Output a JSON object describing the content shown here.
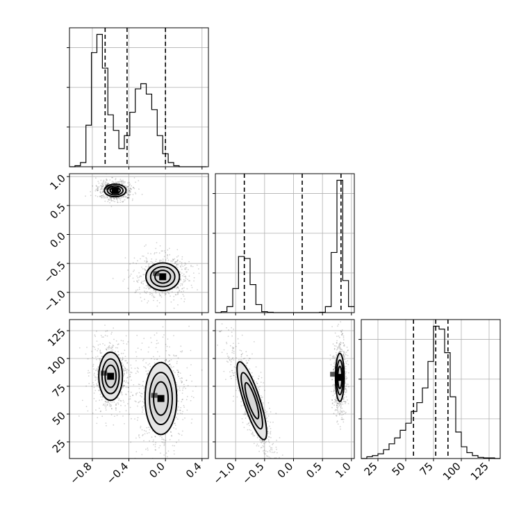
{
  "chart_data": {
    "type": "corner",
    "title": "",
    "grid": true,
    "parameters": [
      {
        "ticks": [
          -0.8,
          -0.4,
          0.0,
          0.4
        ],
        "tick_labels": [
          "−0.8",
          "−0.4",
          "0.0",
          "0.4"
        ],
        "range": [
          -1.05,
          0.47
        ],
        "quantiles": [
          -0.66,
          -0.42,
          0.0
        ],
        "hist_bins": [
          -1.05,
          -0.99,
          -0.93,
          -0.87,
          -0.81,
          -0.75,
          -0.69,
          -0.63,
          -0.57,
          -0.51,
          -0.45,
          -0.39,
          -0.33,
          -0.27,
          -0.21,
          -0.15,
          -0.09,
          -0.03,
          0.03,
          0.09,
          0.15,
          0.21,
          0.27,
          0.33,
          0.39,
          0.45
        ],
        "hist_counts": [
          0,
          2,
          8,
          80,
          220,
          255,
          190,
          100,
          70,
          35,
          60,
          105,
          150,
          160,
          140,
          110,
          60,
          25,
          8,
          2,
          0,
          0,
          0,
          0,
          0
        ]
      },
      {
        "ticks": [
          -1.0,
          -0.5,
          0.0,
          0.5,
          1.0
        ],
        "tick_labels": [
          "−1.0",
          "−0.5",
          "0.0",
          "0.5",
          "1.0"
        ],
        "y_tick_labels": [
          "−1.0",
          "−0.5",
          "0.0",
          "0.5",
          "1.0"
        ],
        "range": [
          -1.35,
          1.05
        ],
        "quantiles": [
          -0.85,
          0.15,
          0.82
        ],
        "hist_bins": [
          -1.35,
          -1.25,
          -1.15,
          -1.05,
          -0.95,
          -0.85,
          -0.75,
          -0.65,
          -0.55,
          -0.45,
          -0.35,
          -0.25,
          -0.15,
          -0.05,
          0.05,
          0.15,
          0.25,
          0.35,
          0.45,
          0.55,
          0.65,
          0.75,
          0.85,
          0.95,
          1.05
        ],
        "hist_counts": [
          0,
          5,
          30,
          120,
          280,
          270,
          140,
          40,
          5,
          2,
          0,
          0,
          0,
          0,
          0,
          0,
          0,
          0,
          2,
          30,
          300,
          660,
          160,
          30
        ]
      },
      {
        "ticks": [
          25,
          50,
          75,
          100,
          125
        ],
        "tick_labels": [
          "25",
          "50",
          "75",
          "100",
          "125"
        ],
        "y_tick_labels": [
          "25",
          "50",
          "75",
          "100",
          "125"
        ],
        "range": [
          10,
          135
        ],
        "quantiles": [
          57,
          77,
          88
        ],
        "hist_bins": [
          10,
          15,
          20,
          25,
          30,
          35,
          40,
          45,
          50,
          55,
          60,
          65,
          70,
          75,
          80,
          85,
          90,
          95,
          100,
          105,
          110,
          115,
          120,
          125,
          130,
          135
        ],
        "hist_counts": [
          0,
          3,
          5,
          8,
          15,
          25,
          35,
          48,
          60,
          80,
          95,
          120,
          165,
          225,
          220,
          180,
          105,
          45,
          20,
          10,
          5,
          2,
          1,
          1,
          0
        ]
      }
    ],
    "density_modes": [
      {
        "x": 0,
        "y": 1,
        "center": [
          -0.55,
          0.76
        ],
        "axes": [
          0.11,
          0.1
        ]
      },
      {
        "x": 0,
        "y": 1,
        "center": [
          -0.03,
          -0.73
        ],
        "axes": [
          0.17,
          0.22
        ]
      },
      {
        "x": 0,
        "y": 2,
        "center": [
          -0.6,
          84
        ],
        "axes": [
          0.12,
          20
        ]
      },
      {
        "x": 0,
        "y": 2,
        "center": [
          -0.05,
          64
        ],
        "axes": [
          0.16,
          30
        ]
      },
      {
        "x": 1,
        "y": 2,
        "center": [
          -0.72,
          62
        ],
        "axes": [
          0.13,
          34
        ]
      },
      {
        "x": 1,
        "y": 2,
        "center": [
          0.8,
          83
        ],
        "axes": [
          0.07,
          20
        ]
      }
    ]
  }
}
